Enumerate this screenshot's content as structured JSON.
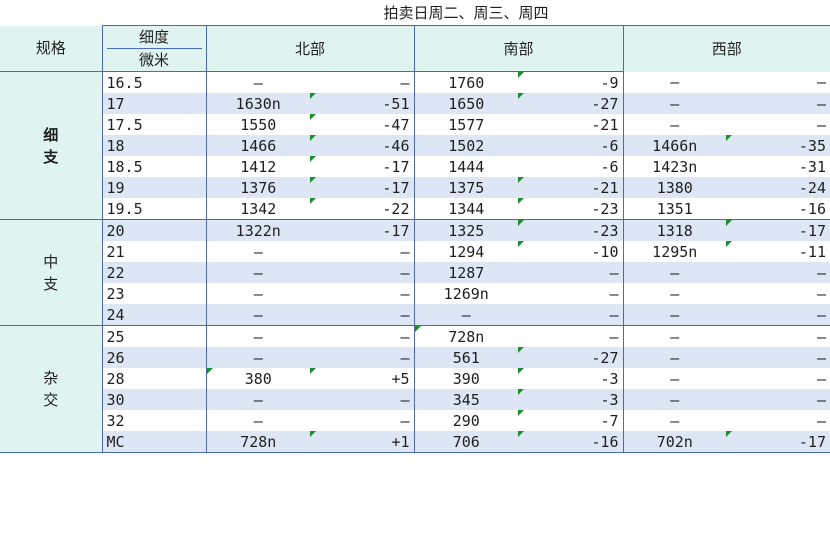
{
  "title": "拍卖日周二、周三、周四",
  "headers": {
    "spec": "规格",
    "fine_line1": "细度",
    "fine_line2": "微米",
    "regions": [
      "北部",
      "南部",
      "西部"
    ]
  },
  "groups": [
    {
      "name_chars": [
        "细",
        "支"
      ],
      "rows": [
        {
          "micron": "16.5",
          "n_price": "–",
          "n_chg": "–",
          "s_price": "1760",
          "s_chg": "-9",
          "w_price": "–",
          "w_chg": "–"
        },
        {
          "micron": "17",
          "n_price": "1630n",
          "n_chg": "-51",
          "s_price": "1650",
          "s_chg": "-27",
          "w_price": "–",
          "w_chg": "–"
        },
        {
          "micron": "17.5",
          "n_price": "1550",
          "n_chg": "-47",
          "s_price": "1577",
          "s_chg": "-21",
          "w_price": "–",
          "w_chg": "–"
        },
        {
          "micron": "18",
          "n_price": "1466",
          "n_chg": "-46",
          "s_price": "1502",
          "s_chg": "-6",
          "w_price": "1466n",
          "w_chg": "-35"
        },
        {
          "micron": "18.5",
          "n_price": "1412",
          "n_chg": "-17",
          "s_price": "1444",
          "s_chg": "-6",
          "w_price": "1423n",
          "w_chg": "-31"
        },
        {
          "micron": "19",
          "n_price": "1376",
          "n_chg": "-17",
          "s_price": "1375",
          "s_chg": "-21",
          "w_price": "1380",
          "w_chg": "-24"
        },
        {
          "micron": "19.5",
          "n_price": "1342",
          "n_chg": "-22",
          "s_price": "1344",
          "s_chg": "-23",
          "w_price": "1351",
          "w_chg": "-16"
        }
      ]
    },
    {
      "name_chars": [
        "中",
        "支"
      ],
      "rows": [
        {
          "micron": "20",
          "n_price": "1322n",
          "n_chg": "-17",
          "s_price": "1325",
          "s_chg": "-23",
          "w_price": "1318",
          "w_chg": "-17"
        },
        {
          "micron": "21",
          "n_price": "–",
          "n_chg": "–",
          "s_price": "1294",
          "s_chg": "-10",
          "w_price": "1295n",
          "w_chg": "-11"
        },
        {
          "micron": "22",
          "n_price": "–",
          "n_chg": "–",
          "s_price": "1287",
          "s_chg": "–",
          "w_price": "–",
          "w_chg": "–"
        },
        {
          "micron": "23",
          "n_price": "–",
          "n_chg": "–",
          "s_price": "1269n",
          "s_chg": "–",
          "w_price": "–",
          "w_chg": "–"
        },
        {
          "micron": "24",
          "n_price": "–",
          "n_chg": "–",
          "s_price": "–",
          "s_chg": "–",
          "w_price": "–",
          "w_chg": "–"
        }
      ]
    },
    {
      "name_chars": [
        "杂",
        "交"
      ],
      "rows": [
        {
          "micron": "25",
          "n_price": "–",
          "n_chg": "–",
          "s_price": "728n",
          "s_chg": "–",
          "w_price": "–",
          "w_chg": "–"
        },
        {
          "micron": "26",
          "n_price": "–",
          "n_chg": "–",
          "s_price": "561",
          "s_chg": "-27",
          "w_price": "–",
          "w_chg": "–"
        },
        {
          "micron": "28",
          "n_price": "380",
          "n_chg": "+5",
          "s_price": "390",
          "s_chg": "-3",
          "w_price": "–",
          "w_chg": "–"
        },
        {
          "micron": "30",
          "n_price": "–",
          "n_chg": "–",
          "s_price": "345",
          "s_chg": "-3",
          "w_price": "–",
          "w_chg": "–"
        },
        {
          "micron": "32",
          "n_price": "–",
          "n_chg": "–",
          "s_price": "290",
          "s_chg": "-7",
          "w_price": "–",
          "w_chg": "–"
        },
        {
          "micron": "MC",
          "n_price": "728n",
          "n_chg": "+1",
          "s_price": "706",
          "s_chg": "-16",
          "w_price": "702n",
          "w_chg": "-17"
        }
      ]
    }
  ],
  "colors": {
    "header_bg": "#dff3f1",
    "band_bg": "#dce6f4",
    "grid_line": "#4a6bb0",
    "flag_green": "#1a8f2e",
    "fine_label": "#1a3f9c",
    "other_label": "#1a7fb0"
  }
}
